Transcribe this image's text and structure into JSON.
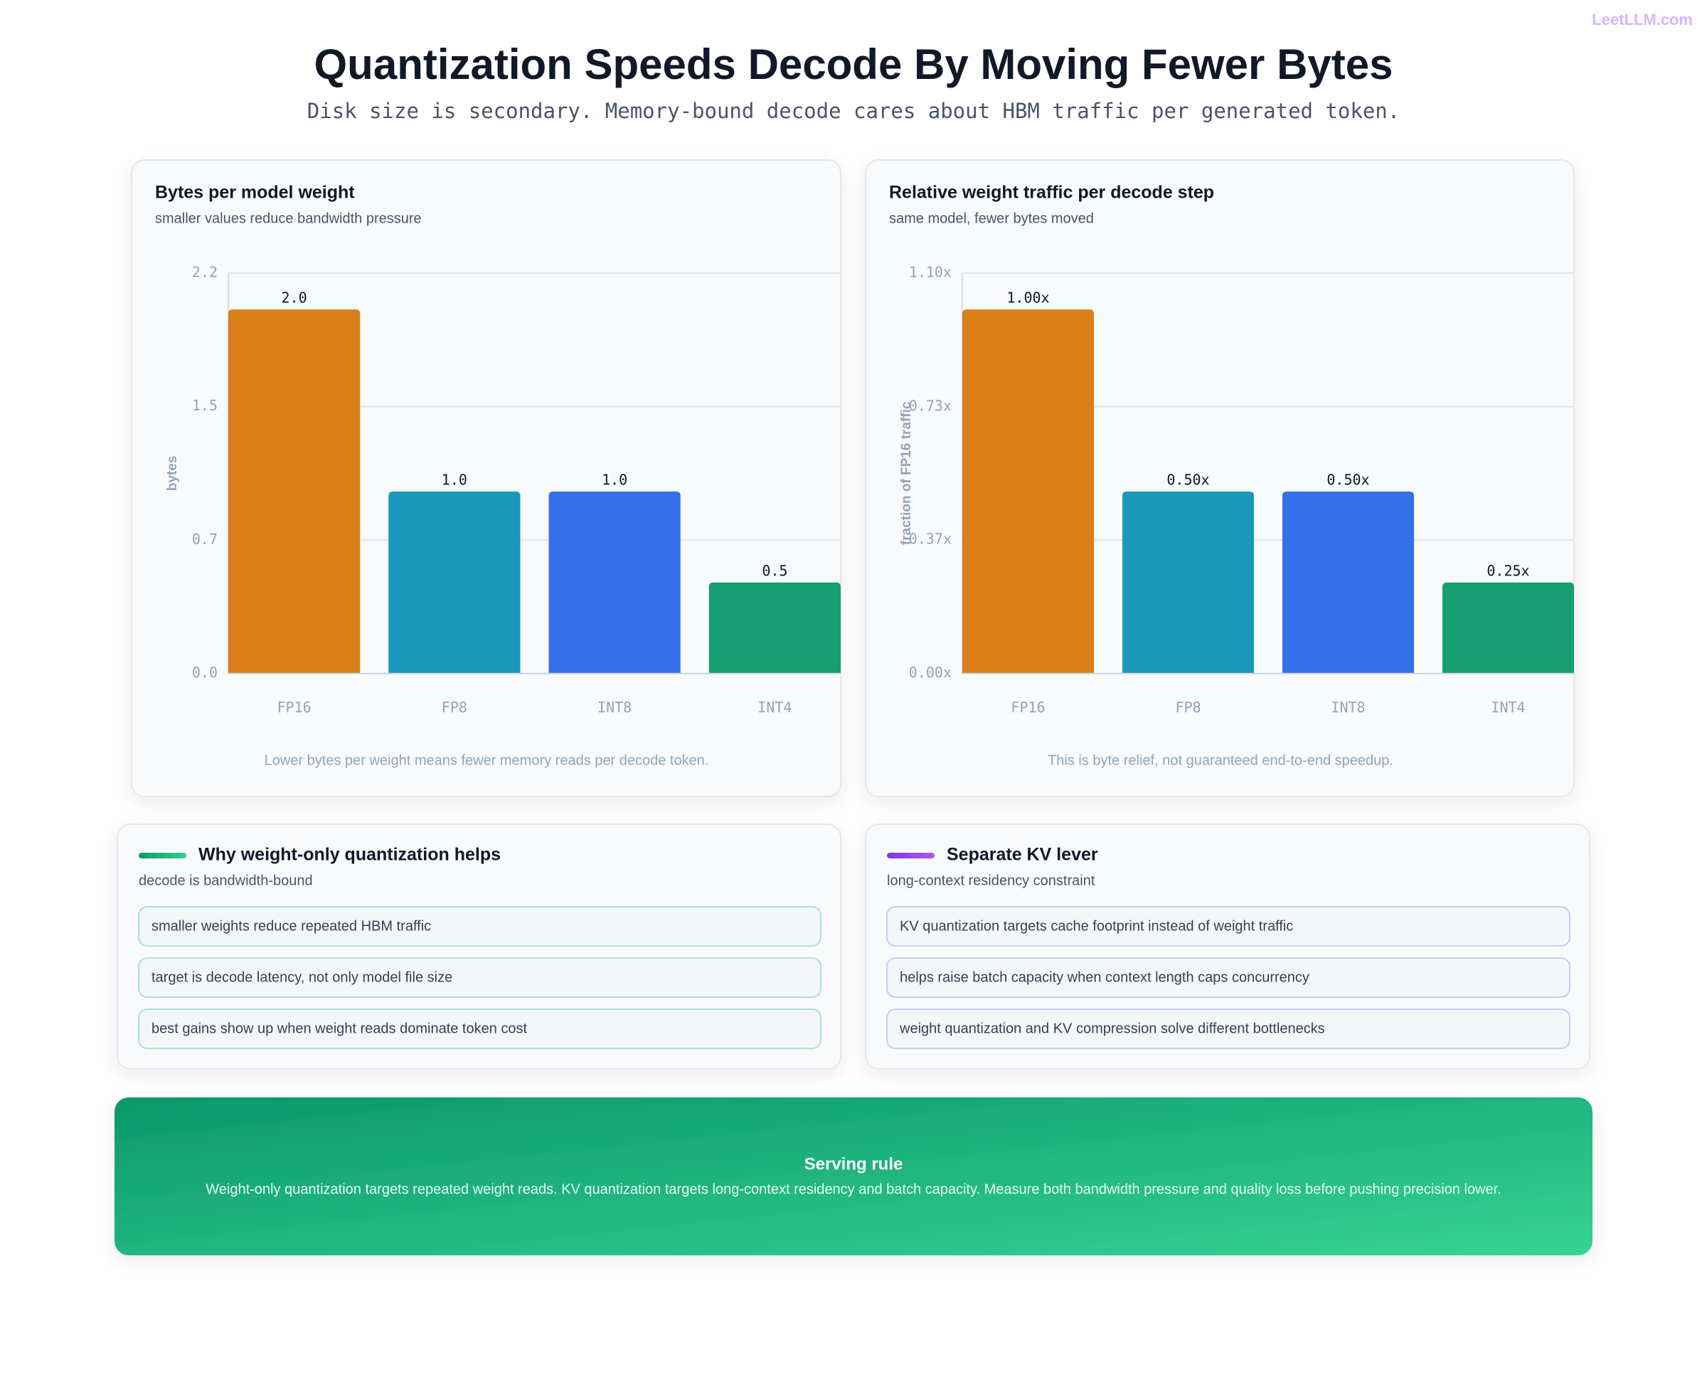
{
  "brand": "LeetLLM.com",
  "header": {
    "title": "Quantization Speeds Decode By Moving Fewer Bytes",
    "subtitle": "Disk size is secondary. Memory-bound decode cares about HBM traffic per generated token."
  },
  "chart_data": [
    {
      "type": "bar",
      "title": "Bytes per model weight",
      "subtitle": "smaller values reduce bandwidth pressure",
      "y_label": "bytes",
      "categories": [
        "FP16",
        "FP8",
        "INT8",
        "INT4"
      ],
      "values": [
        2,
        1,
        1,
        0.5
      ],
      "value_labels": [
        "2.0",
        "1.0",
        "1.0",
        "0.5"
      ],
      "colors": [
        "#d98019",
        "#1b99ba",
        "#3571e8",
        "#179e72"
      ],
      "ylim": [
        0,
        2.2
      ],
      "yticks": [
        {
          "value": 0,
          "label": "0.0"
        },
        {
          "value": 0.733,
          "label": "0.7"
        },
        {
          "value": 1.467,
          "label": "1.5"
        },
        2.2
      ],
      "grid": true,
      "note": "Lower bytes per weight means fewer memory reads per decode token."
    },
    {
      "type": "bar",
      "title": "Relative weight traffic per decode step",
      "subtitle": "same model, fewer bytes moved",
      "y_label": "fraction of FP16 traffic",
      "categories": [
        "FP16",
        "FP8",
        "INT8",
        "INT4"
      ],
      "values": [
        1,
        0.5,
        0.5,
        0.25
      ],
      "value_labels": [
        "1.00x",
        "0.50x",
        "0.50x",
        "0.25x"
      ],
      "colors": [
        "#d98019",
        "#1b99ba",
        "#3571e8",
        "#179e72"
      ],
      "ylim": [
        0,
        1.1
      ],
      "yticks": [
        {
          "value": 0,
          "label": "0.00x"
        },
        {
          "value": 0.367,
          "label": "0.37x"
        },
        {
          "value": 0.733,
          "label": "0.73x"
        },
        {
          "value": 1.1,
          "label": "1.10x"
        }
      ],
      "grid": true,
      "note": "This is byte relief, not guaranteed end-to-end speedup."
    }
  ],
  "cards": [
    {
      "title": "Why weight-only quantization helps",
      "subtitle": "decode is bandwidth-bound",
      "items": [
        "smaller weights reduce repeated HBM traffic",
        "target is decode latency, not only model file size",
        "best gains show up when weight reads dominate token cost"
      ]
    },
    {
      "title": "Separate KV lever",
      "subtitle": "long-context residency constraint",
      "items": [
        "KV quantization targets cache footprint instead of weight traffic",
        "helps raise batch capacity when context length caps concurrency",
        "weight quantization and KV compression solve different bottlenecks"
      ]
    }
  ],
  "banner": {
    "title": "Serving rule",
    "text": "Weight-only quantization targets repeated weight reads. KV quantization targets long-context residency and batch capacity. Measure both bandwidth pressure and quality loss before pushing precision lower."
  }
}
